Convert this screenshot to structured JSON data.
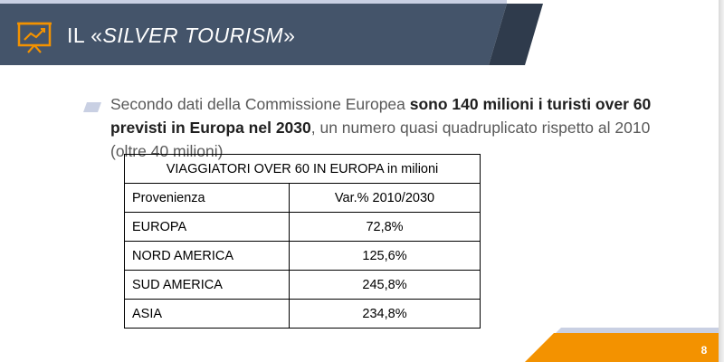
{
  "header": {
    "icon": "presentation-chart-icon",
    "title_prefix": "IL «",
    "title_italic": "SILVER TOURISM",
    "title_suffix": "»"
  },
  "bullet": {
    "text_1": "Secondo dati della Commissione Europea ",
    "text_bold": "sono 140 milioni i turisti over 60 previsti in Europa nel 2030",
    "text_2": ", un numero quasi quadruplicato rispetto al 2010 (oltre 40 milioni)"
  },
  "table": {
    "caption": "VIAGGIATORI OVER 60 IN EUROPA in milioni",
    "header": [
      "Provenienza",
      "Var.% 2010/2030"
    ],
    "rows": [
      [
        "EUROPA",
        "72,8%"
      ],
      [
        "NORD AMERICA",
        "125,6%"
      ],
      [
        "SUD AMERICA",
        "245,8%"
      ],
      [
        "ASIA",
        "234,8%"
      ]
    ]
  },
  "footer": {
    "page_number": "8"
  },
  "colors": {
    "header_navy": "#44546a",
    "accent_orange": "#f39200",
    "light_blue": "#c9d0e3"
  }
}
